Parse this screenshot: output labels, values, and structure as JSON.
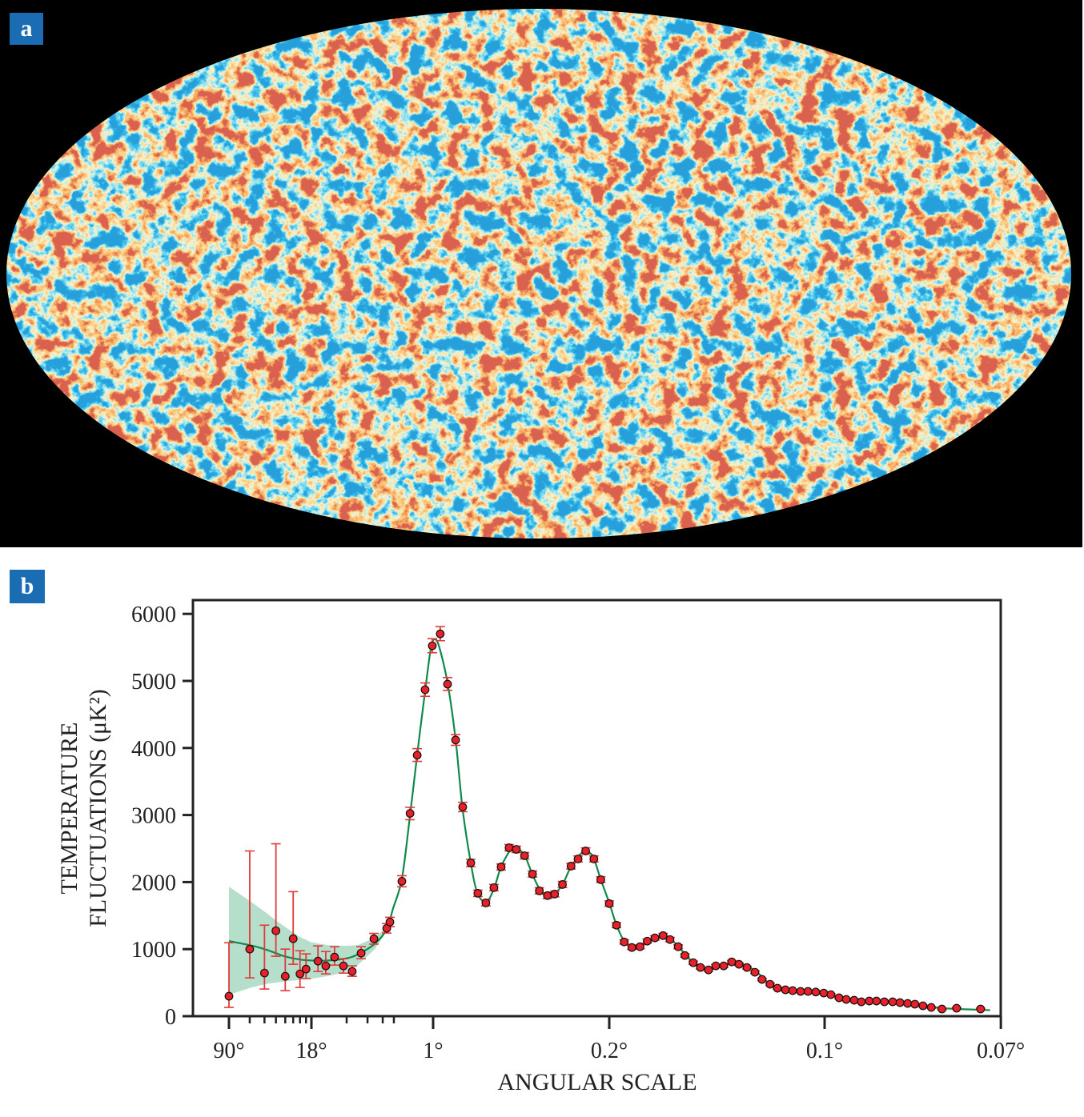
{
  "panels": {
    "a_label": "a",
    "b_label": "b"
  },
  "colors": {
    "background": "#000000",
    "label_box": "#1b6db3",
    "map_cold": "#1565c0",
    "map_neutral": "#f2e6b0",
    "map_hot": "#e8701e",
    "map_hottest": "#a81e14",
    "data_point": "#e8202a",
    "error_bar": "#e03a3a",
    "model_line": "#0f8a4a",
    "model_band": "#b5dfcb"
  },
  "chart_data": {
    "type": "scatter",
    "xlabel": "ANGULAR SCALE",
    "ylabel_line1": "TEMPERATURE",
    "ylabel_line2": "FLUCTUATIONS (μK²)",
    "x_scale": "angular scale in degrees (log of multipole at large scales, linear in multipole at small scales)",
    "xlim": [
      90,
      0.07
    ],
    "ylim": [
      0,
      6000
    ],
    "x_ticks": [
      {
        "value": 90,
        "label": "90°"
      },
      {
        "value": 18,
        "label": "18°"
      },
      {
        "value": 1,
        "label": "1°"
      },
      {
        "value": 0.2,
        "label": "0.2°"
      },
      {
        "value": 0.1,
        "label": "0.1°"
      },
      {
        "value": 0.07,
        "label": "0.07°"
      }
    ],
    "x_minor_ticks": [
      60,
      45,
      36,
      30,
      25.7,
      22.5,
      20,
      7.8,
      4.75,
      3.31,
      2.54
    ],
    "y_ticks": [
      {
        "value": 0,
        "label": "0"
      },
      {
        "value": 1000,
        "label": "1000"
      },
      {
        "value": 2000,
        "label": "2000"
      },
      {
        "value": 3000,
        "label": "3000"
      },
      {
        "value": 4000,
        "label": "4000"
      },
      {
        "value": 5000,
        "label": "5000"
      },
      {
        "value": 6000,
        "label": "6000"
      }
    ],
    "grid": false,
    "points_fields": [
      "angular_scale_deg",
      "value",
      "err_low",
      "err_high"
    ],
    "points": [
      [
        90,
        298,
        131,
        1095
      ],
      [
        60,
        1000,
        571,
        2464
      ],
      [
        45,
        643,
        405,
        1357
      ],
      [
        36,
        1274,
        893,
        2571
      ],
      [
        30,
        595,
        381,
        1000
      ],
      [
        25.7,
        1155,
        774,
        1857
      ],
      [
        22.5,
        631,
        429,
        976
      ],
      [
        20,
        702,
        560,
        929
      ],
      [
        15.4,
        821,
        667,
        1048
      ],
      [
        12.8,
        750,
        631,
        964
      ],
      [
        10.4,
        881,
        762,
        1036
      ],
      [
        8.41,
        750,
        643,
        857
      ],
      [
        6.83,
        667,
        595,
        750
      ],
      [
        5.53,
        940,
        857,
        1036
      ],
      [
        4.08,
        1155,
        1075,
        1235
      ],
      [
        3.01,
        1310,
        1240,
        1380
      ],
      [
        2.79,
        1405,
        1335,
        1475
      ],
      [
        2.1,
        2012,
        1930,
        2095
      ],
      [
        1.73,
        3024,
        2930,
        3115
      ],
      [
        1.46,
        3893,
        3800,
        3990
      ],
      [
        1.21,
        4869,
        4770,
        4970
      ],
      [
        1.02,
        5524,
        5420,
        5630
      ],
      [
        0.861,
        5702,
        5600,
        5810
      ],
      [
        0.753,
        4952,
        4860,
        5050
      ],
      [
        0.662,
        4119,
        4040,
        4200
      ],
      [
        0.598,
        3119,
        3050,
        3190
      ],
      [
        0.539,
        2286,
        2230,
        2340
      ],
      [
        0.496,
        1833,
        1785,
        1880
      ],
      [
        0.455,
        1690,
        1645,
        1735
      ],
      [
        0.42,
        1917,
        1870,
        1965
      ],
      [
        0.393,
        2226,
        2180,
        2270
      ],
      [
        0.367,
        2512,
        2465,
        2560
      ],
      [
        0.346,
        2488,
        2440,
        2535
      ],
      [
        0.325,
        2393,
        2345,
        2440
      ],
      [
        0.307,
        2119,
        2075,
        2165
      ],
      [
        0.293,
        1869,
        1825,
        1915
      ],
      [
        0.278,
        1798,
        1755,
        1840
      ],
      [
        0.266,
        1821,
        1780,
        1865
      ],
      [
        0.254,
        1964,
        1920,
        2010
      ],
      [
        0.242,
        2238,
        2195,
        2280
      ],
      [
        0.233,
        2345,
        2300,
        2390
      ],
      [
        0.224,
        2464,
        2420,
        2510
      ],
      [
        0.215,
        2345,
        2300,
        2390
      ],
      [
        0.208,
        2036,
        1995,
        2080
      ],
      [
        0.2,
        1679,
        1640,
        1720
      ],
      [
        0.1935,
        1357,
        1320,
        1395
      ],
      [
        0.187,
        1107,
        1075,
        1140
      ],
      [
        0.181,
        1024,
        995,
        1055
      ],
      [
        0.175,
        1036,
        1005,
        1065
      ],
      [
        0.17,
        1119,
        1090,
        1150
      ],
      [
        0.165,
        1167,
        1135,
        1200
      ],
      [
        0.16,
        1202,
        1170,
        1235
      ],
      [
        0.156,
        1143,
        1110,
        1175
      ],
      [
        0.1515,
        1036,
        1005,
        1065
      ],
      [
        0.148,
        905,
        880,
        930
      ],
      [
        0.1439,
        798,
        775,
        820
      ],
      [
        0.1405,
        726,
        705,
        748
      ],
      [
        0.1369,
        690,
        670,
        710
      ],
      [
        0.1338,
        750,
        730,
        770
      ],
      [
        0.1306,
        750,
        730,
        770
      ],
      [
        0.1275,
        810,
        790,
        830
      ],
      [
        0.1248,
        774,
        755,
        795
      ],
      [
        0.122,
        726,
        705,
        745
      ],
      [
        0.1193,
        655,
        635,
        675
      ],
      [
        0.117,
        548,
        530,
        565
      ],
      [
        0.1145,
        476,
        460,
        492
      ],
      [
        0.1123,
        417,
        402,
        432
      ],
      [
        0.11,
        393,
        378,
        408
      ],
      [
        0.108,
        381,
        366,
        396
      ],
      [
        0.1059,
        369,
        355,
        384
      ],
      [
        0.104,
        369,
        355,
        384
      ],
      [
        0.1021,
        360,
        346,
        375
      ],
      [
        0.1002,
        345,
        331,
        360
      ],
      [
        0.0985,
        321,
        307,
        335
      ],
      [
        0.0966,
        274,
        261,
        287
      ],
      [
        0.095,
        250,
        237,
        263
      ],
      [
        0.0933,
        238,
        225,
        251
      ],
      [
        0.0918,
        214,
        202,
        226
      ],
      [
        0.0902,
        226,
        214,
        238
      ],
      [
        0.0888,
        226,
        214,
        238
      ],
      [
        0.0873,
        214,
        202,
        226
      ],
      [
        0.0858,
        214,
        202,
        226
      ],
      [
        0.0845,
        202,
        190,
        214
      ],
      [
        0.0832,
        190,
        178,
        202
      ],
      [
        0.082,
        179,
        167,
        191
      ],
      [
        0.0807,
        155,
        143,
        167
      ],
      [
        0.0794,
        131,
        119,
        143
      ],
      [
        0.0778,
        107,
        95,
        119
      ],
      [
        0.0757,
        119,
        107,
        131
      ],
      [
        0.0725,
        107,
        95,
        119
      ]
    ],
    "model_curve": [
      [
        90,
        1120
      ],
      [
        60,
        1060
      ],
      [
        45,
        1000
      ],
      [
        36,
        940
      ],
      [
        30,
        890
      ],
      [
        22.5,
        845
      ],
      [
        18,
        830
      ],
      [
        12,
        830
      ],
      [
        8,
        860
      ],
      [
        6,
        920
      ],
      [
        4,
        1080
      ],
      [
        3,
        1300
      ],
      [
        2.6,
        1600
      ],
      [
        2.1,
        2050
      ],
      [
        1.73,
        3000
      ],
      [
        1.46,
        3900
      ],
      [
        1.21,
        4850
      ],
      [
        1.05,
        5500
      ],
      [
        0.95,
        5620
      ],
      [
        0.86,
        5450
      ],
      [
        0.75,
        4950
      ],
      [
        0.66,
        4100
      ],
      [
        0.6,
        3100
      ],
      [
        0.54,
        2300
      ],
      [
        0.5,
        1850
      ],
      [
        0.455,
        1700
      ],
      [
        0.42,
        1900
      ],
      [
        0.393,
        2230
      ],
      [
        0.36,
        2500
      ],
      [
        0.346,
        2510
      ],
      [
        0.325,
        2400
      ],
      [
        0.307,
        2110
      ],
      [
        0.29,
        1860
      ],
      [
        0.278,
        1790
      ],
      [
        0.266,
        1830
      ],
      [
        0.254,
        1960
      ],
      [
        0.242,
        2230
      ],
      [
        0.228,
        2440
      ],
      [
        0.22,
        2440
      ],
      [
        0.215,
        2350
      ],
      [
        0.208,
        2040
      ],
      [
        0.2,
        1690
      ],
      [
        0.1935,
        1360
      ],
      [
        0.187,
        1120
      ],
      [
        0.181,
        1030
      ],
      [
        0.175,
        1040
      ],
      [
        0.167,
        1130
      ],
      [
        0.16,
        1200
      ],
      [
        0.156,
        1160
      ],
      [
        0.1515,
        1040
      ],
      [
        0.1439,
        800
      ],
      [
        0.1369,
        700
      ],
      [
        0.1306,
        760
      ],
      [
        0.1248,
        790
      ],
      [
        0.1193,
        680
      ],
      [
        0.1145,
        480
      ],
      [
        0.11,
        390
      ],
      [
        0.1059,
        370
      ],
      [
        0.1002,
        345
      ],
      [
        0.095,
        260
      ],
      [
        0.0902,
        225
      ],
      [
        0.0858,
        210
      ],
      [
        0.082,
        180
      ],
      [
        0.0778,
        120
      ],
      [
        0.0713,
        90
      ]
    ],
    "model_band_upper": [
      [
        90,
        1930
      ],
      [
        60,
        1720
      ],
      [
        45,
        1560
      ],
      [
        36,
        1430
      ],
      [
        30,
        1330
      ],
      [
        22.5,
        1180
      ],
      [
        18,
        1100
      ],
      [
        12,
        1060
      ],
      [
        8,
        1050
      ],
      [
        6,
        1060
      ],
      [
        4,
        1170
      ],
      [
        3,
        1330
      ],
      [
        2.6,
        1620
      ]
    ],
    "model_band_lower": [
      [
        90,
        320
      ],
      [
        60,
        420
      ],
      [
        45,
        476
      ],
      [
        36,
        500
      ],
      [
        30,
        520
      ],
      [
        22.5,
        540
      ],
      [
        18,
        560
      ],
      [
        12,
        600
      ],
      [
        8,
        660
      ],
      [
        6,
        760
      ],
      [
        4,
        1000
      ],
      [
        3,
        1270
      ],
      [
        2.6,
        1580
      ]
    ]
  }
}
